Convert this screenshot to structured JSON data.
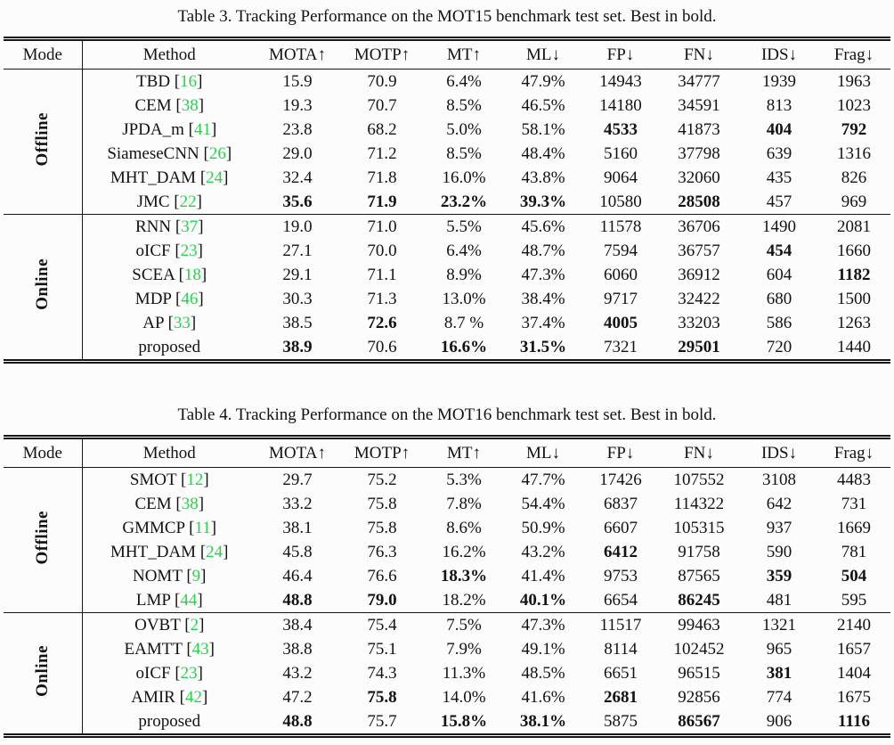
{
  "page": {
    "background_color": "#fcfcfc",
    "text_color": "#121212",
    "rule_color": "#161616",
    "citation_color": "#28d34c"
  },
  "tables": [
    {
      "title": "Table 3. Tracking Performance on the MOT15 benchmark test set. Best in bold.",
      "columns": [
        "Mode",
        "Method",
        "MOTA↑",
        "MOTP↑",
        "MT↑",
        "ML↓",
        "FP↓",
        "FN↓",
        "IDS↓",
        "Frag↓"
      ],
      "sections": [
        {
          "mode": "Offline",
          "rows": [
            {
              "method": "TBD",
              "cite": "16",
              "cells": [
                "15.9",
                "70.9",
                "6.4%",
                "47.9%",
                "14943",
                "34777",
                "1939",
                "1963"
              ],
              "bold": []
            },
            {
              "method": "CEM",
              "cite": "38",
              "cells": [
                "19.3",
                "70.7",
                "8.5%",
                "46.5%",
                "14180",
                "34591",
                "813",
                "1023"
              ],
              "bold": []
            },
            {
              "method": "JPDA_m",
              "cite": "41",
              "cells": [
                "23.8",
                "68.2",
                "5.0%",
                "58.1%",
                "4533",
                "41873",
                "404",
                "792"
              ],
              "bold": [
                4,
                6,
                7
              ]
            },
            {
              "method": "SiameseCNN",
              "cite": "26",
              "cells": [
                "29.0",
                "71.2",
                "8.5%",
                "48.4%",
                "5160",
                "37798",
                "639",
                "1316"
              ],
              "bold": []
            },
            {
              "method": "MHT_DAM",
              "cite": "24",
              "cells": [
                "32.4",
                "71.8",
                "16.0%",
                "43.8%",
                "9064",
                "32060",
                "435",
                "826"
              ],
              "bold": []
            },
            {
              "method": "JMC",
              "cite": "22",
              "cells": [
                "35.6",
                "71.9",
                "23.2%",
                "39.3%",
                "10580",
                "28508",
                "457",
                "969"
              ],
              "bold": [
                0,
                1,
                2,
                3,
                5
              ]
            }
          ]
        },
        {
          "mode": "Online",
          "rows": [
            {
              "method": "RNN",
              "cite": "37",
              "cells": [
                "19.0",
                "71.0",
                "5.5%",
                "45.6%",
                "11578",
                "36706",
                "1490",
                "2081"
              ],
              "bold": []
            },
            {
              "method": "oICF",
              "cite": "23",
              "cells": [
                "27.1",
                "70.0",
                "6.4%",
                "48.7%",
                "7594",
                "36757",
                "454",
                "1660"
              ],
              "bold": [
                6
              ]
            },
            {
              "method": "SCEA",
              "cite": "18",
              "cells": [
                "29.1",
                "71.1",
                "8.9%",
                "47.3%",
                "6060",
                "36912",
                "604",
                "1182"
              ],
              "bold": [
                7
              ]
            },
            {
              "method": "MDP",
              "cite": "46",
              "cells": [
                "30.3",
                "71.3",
                "13.0%",
                "38.4%",
                "9717",
                "32422",
                "680",
                "1500"
              ],
              "bold": []
            },
            {
              "method": "AP",
              "cite": "33",
              "cells": [
                "38.5",
                "72.6",
                "8.7 %",
                "37.4%",
                "4005",
                "33203",
                "586",
                "1263"
              ],
              "bold": [
                1,
                4
              ]
            },
            {
              "method": "proposed",
              "cite": null,
              "cells": [
                "38.9",
                "70.6",
                "16.6%",
                "31.5%",
                "7321",
                "29501",
                "720",
                "1440"
              ],
              "bold": [
                0,
                2,
                3,
                5
              ]
            }
          ]
        }
      ]
    },
    {
      "title": "Table 4. Tracking Performance on the MOT16 benchmark test set. Best in bold.",
      "columns": [
        "Mode",
        "Method",
        "MOTA↑",
        "MOTP↑",
        "MT↑",
        "ML↓",
        "FP↓",
        "FN↓",
        "IDS↓",
        "Frag↓"
      ],
      "sections": [
        {
          "mode": "Offline",
          "rows": [
            {
              "method": "SMOT",
              "cite": "12",
              "cells": [
                "29.7",
                "75.2",
                "5.3%",
                "47.7%",
                "17426",
                "107552",
                "3108",
                "4483"
              ],
              "bold": []
            },
            {
              "method": "CEM",
              "cite": "38",
              "cells": [
                "33.2",
                "75.8",
                "7.8%",
                "54.4%",
                "6837",
                "114322",
                "642",
                "731"
              ],
              "bold": []
            },
            {
              "method": "GMMCP",
              "cite": "11",
              "cells": [
                "38.1",
                "75.8",
                "8.6%",
                "50.9%",
                "6607",
                "105315",
                "937",
                "1669"
              ],
              "bold": []
            },
            {
              "method": "MHT_DAM",
              "cite": "24",
              "cells": [
                "45.8",
                "76.3",
                "16.2%",
                "43.2%",
                "6412",
                "91758",
                "590",
                "781"
              ],
              "bold": [
                4
              ]
            },
            {
              "method": "NOMT",
              "cite": "9",
              "cells": [
                "46.4",
                "76.6",
                "18.3%",
                "41.4%",
                "9753",
                "87565",
                "359",
                "504"
              ],
              "bold": [
                2,
                6,
                7
              ]
            },
            {
              "method": "LMP",
              "cite": "44",
              "cells": [
                "48.8",
                "79.0",
                "18.2%",
                "40.1%",
                "6654",
                "86245",
                "481",
                "595"
              ],
              "bold": [
                0,
                1,
                3,
                5
              ]
            }
          ]
        },
        {
          "mode": "Online",
          "rows": [
            {
              "method": "OVBT",
              "cite": "2",
              "cells": [
                "38.4",
                "75.4",
                "7.5%",
                "47.3%",
                "11517",
                "99463",
                "1321",
                "2140"
              ],
              "bold": []
            },
            {
              "method": "EAMTT",
              "cite": "43",
              "cells": [
                "38.8",
                "75.1",
                "7.9%",
                "49.1%",
                "8114",
                "102452",
                "965",
                "1657"
              ],
              "bold": []
            },
            {
              "method": "oICF",
              "cite": "23",
              "cells": [
                "43.2",
                "74.3",
                "11.3%",
                "48.5%",
                "6651",
                "96515",
                "381",
                "1404"
              ],
              "bold": [
                6
              ]
            },
            {
              "method": "AMIR",
              "cite": "42",
              "cells": [
                "47.2",
                "75.8",
                "14.0%",
                "41.6%",
                "2681",
                "92856",
                "774",
                "1675"
              ],
              "bold": [
                1,
                4
              ]
            },
            {
              "method": "proposed",
              "cite": null,
              "cells": [
                "48.8",
                "75.7",
                "15.8%",
                "38.1%",
                "5875",
                "86567",
                "906",
                "1116"
              ],
              "bold": [
                0,
                2,
                3,
                5,
                7
              ]
            }
          ]
        }
      ]
    }
  ]
}
